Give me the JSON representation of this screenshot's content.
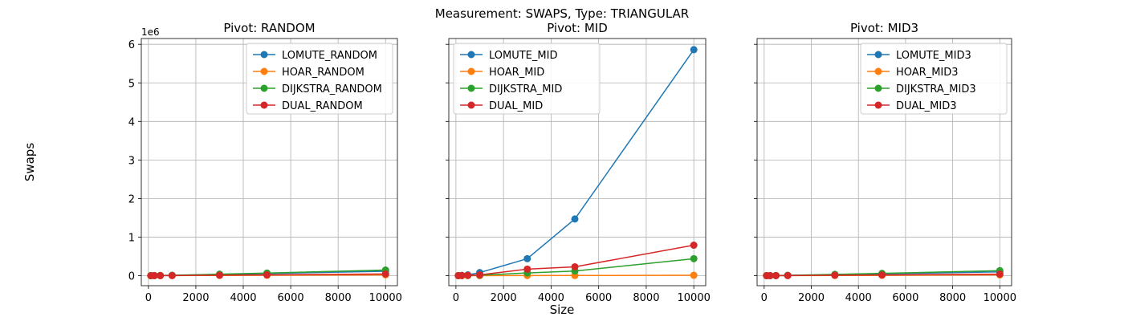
{
  "figure": {
    "suptitle": "Measurement: SWAPS, Type: TRIANGULAR",
    "xlabel": "Size",
    "ylabel": "Swaps",
    "offset_label": "1e6"
  },
  "colors": {
    "LOMUTE": "#1f77b4",
    "HOAR": "#ff7f0e",
    "DIJKSTRA": "#2ca02c",
    "DUAL": "#d62728"
  },
  "chart_data": [
    {
      "type": "line",
      "title": "Pivot: RANDOM",
      "x": [
        100,
        250,
        500,
        1000,
        3000,
        5000,
        10000
      ],
      "xlim": [
        -300,
        10500
      ],
      "ylim": [
        -260000,
        6150000
      ],
      "xticks": [
        0,
        2000,
        4000,
        6000,
        8000,
        10000
      ],
      "yticks": [
        0,
        1000000,
        2000000,
        3000000,
        4000000,
        5000000,
        6000000
      ],
      "ytick_labels": [
        "0",
        "1",
        "2",
        "3",
        "4",
        "5",
        "6"
      ],
      "grid": true,
      "legend_position": "top-right",
      "series": [
        {
          "name": "LOMUTE_RANDOM",
          "key": "LOMUTE",
          "values": [
            500,
            1500,
            3500,
            8000,
            30000,
            55000,
            115000
          ]
        },
        {
          "name": "HOAR_RANDOM",
          "key": "HOAR",
          "values": [
            100,
            300,
            700,
            1500,
            6000,
            10000,
            22000
          ]
        },
        {
          "name": "DIJKSTRA_RANDOM",
          "key": "DIJKSTRA",
          "values": [
            700,
            2000,
            4500,
            10000,
            38000,
            68000,
            145000
          ]
        },
        {
          "name": "DUAL_RANDOM",
          "key": "DUAL",
          "values": [
            200,
            600,
            1500,
            3500,
            12000,
            20000,
            45000
          ]
        }
      ]
    },
    {
      "type": "line",
      "title": "Pivot: MID",
      "x": [
        100,
        250,
        500,
        1000,
        3000,
        5000,
        10000
      ],
      "xlim": [
        -300,
        10500
      ],
      "ylim": [
        -260000,
        6150000
      ],
      "xticks": [
        0,
        2000,
        4000,
        6000,
        8000,
        10000
      ],
      "yticks": [
        0,
        1000000,
        2000000,
        3000000,
        4000000,
        5000000,
        6000000
      ],
      "ytick_labels": [
        "",
        "",
        "",
        "",
        "",
        "",
        ""
      ],
      "grid": true,
      "legend_position": "top-left",
      "series": [
        {
          "name": "LOMUTE_MID",
          "key": "LOMUTE",
          "values": [
            2000,
            8000,
            20000,
            80000,
            440000,
            1470000,
            5860000
          ]
        },
        {
          "name": "HOAR_MID",
          "key": "HOAR",
          "values": [
            100,
            300,
            500,
            1000,
            3000,
            5000,
            10000
          ]
        },
        {
          "name": "DIJKSTRA_MID",
          "key": "DIJKSTRA",
          "values": [
            1000,
            3000,
            6000,
            12000,
            70000,
            120000,
            440000
          ]
        },
        {
          "name": "DUAL_MID",
          "key": "DUAL",
          "values": [
            1000,
            3000,
            8000,
            20000,
            170000,
            230000,
            790000
          ]
        }
      ]
    },
    {
      "type": "line",
      "title": "Pivot: MID3",
      "x": [
        100,
        250,
        500,
        1000,
        3000,
        5000,
        10000
      ],
      "xlim": [
        -300,
        10500
      ],
      "ylim": [
        -260000,
        6150000
      ],
      "xticks": [
        0,
        2000,
        4000,
        6000,
        8000,
        10000
      ],
      "yticks": [
        0,
        1000000,
        2000000,
        3000000,
        4000000,
        5000000,
        6000000
      ],
      "ytick_labels": [
        "",
        "",
        "",
        "",
        "",
        "",
        ""
      ],
      "grid": true,
      "legend_position": "top-right",
      "series": [
        {
          "name": "LOMUTE_MID3",
          "key": "LOMUTE",
          "values": [
            500,
            1500,
            3000,
            7000,
            26000,
            48000,
            100000
          ]
        },
        {
          "name": "HOAR_MID3",
          "key": "HOAR",
          "values": [
            100,
            300,
            700,
            1500,
            5000,
            9000,
            20000
          ]
        },
        {
          "name": "DIJKSTRA_MID3",
          "key": "DIJKSTRA",
          "values": [
            700,
            2000,
            4000,
            9000,
            34000,
            60000,
            130000
          ]
        },
        {
          "name": "DUAL_MID3",
          "key": "DUAL",
          "values": [
            200,
            600,
            1400,
            3000,
            11000,
            19000,
            40000
          ]
        }
      ]
    }
  ]
}
